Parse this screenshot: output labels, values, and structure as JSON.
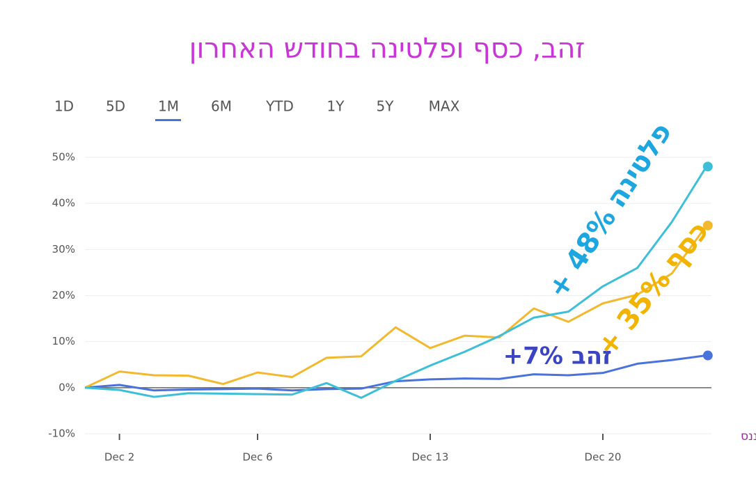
{
  "chart_data": {
    "type": "line",
    "title": "זהב, כסף ופלטינה בחודש האחרון",
    "ranges": [
      "1D",
      "5D",
      "1M",
      "6M",
      "YTD",
      "1Y",
      "5Y",
      "MAX"
    ],
    "source": "מקור: גוגל פייננס",
    "categories": [
      null,
      "Dec 2",
      null,
      null,
      null,
      "Dec 6",
      null,
      null,
      null,
      null,
      "Dec 13",
      null,
      null,
      null,
      null,
      "Dec 20",
      null,
      null,
      null
    ],
    "ylim": [
      -10,
      50
    ],
    "yticks": [
      {
        "value": -10,
        "label": "-10%"
      },
      {
        "value": 0,
        "label": "0%"
      },
      {
        "value": 10,
        "label": "10%"
      },
      {
        "value": 20,
        "label": "20%"
      },
      {
        "value": 30,
        "label": "30%"
      },
      {
        "value": 40,
        "label": "40%"
      },
      {
        "value": 50,
        "label": "50%"
      }
    ],
    "grid": true,
    "series": [
      {
        "name": "זהב",
        "color": "#4a72dc",
        "label_color": "#3b45c4",
        "annotation": "+7%",
        "values": [
          0,
          0.6,
          -0.6,
          -0.4,
          -0.3,
          -0.2,
          -0.6,
          -0.3,
          -0.2,
          1.4,
          1.8,
          2,
          1.9,
          2.9,
          2.7,
          3.2,
          5.2,
          6,
          7
        ]
      },
      {
        "name": "כסף",
        "color": "#f2b92e",
        "label_color": "#f2b400",
        "annotation": "+ 35%",
        "values": [
          0,
          3.5,
          2.7,
          2.6,
          0.8,
          3.3,
          2.3,
          6.5,
          6.8,
          13.1,
          8.6,
          11.3,
          10.9,
          17.2,
          14.3,
          18.3,
          20.2,
          24.8,
          35.2
        ]
      },
      {
        "name": "פלטינה",
        "color": "#3dbfd8",
        "label_color": "#1ea6e0",
        "annotation": "+ 48%",
        "values": [
          0,
          -0.5,
          -2,
          -1.2,
          -1.3,
          -1.4,
          -1.5,
          1,
          -2.2,
          1.5,
          4.8,
          7.8,
          11.2,
          15.2,
          16.5,
          22,
          26,
          36,
          48
        ]
      }
    ]
  }
}
